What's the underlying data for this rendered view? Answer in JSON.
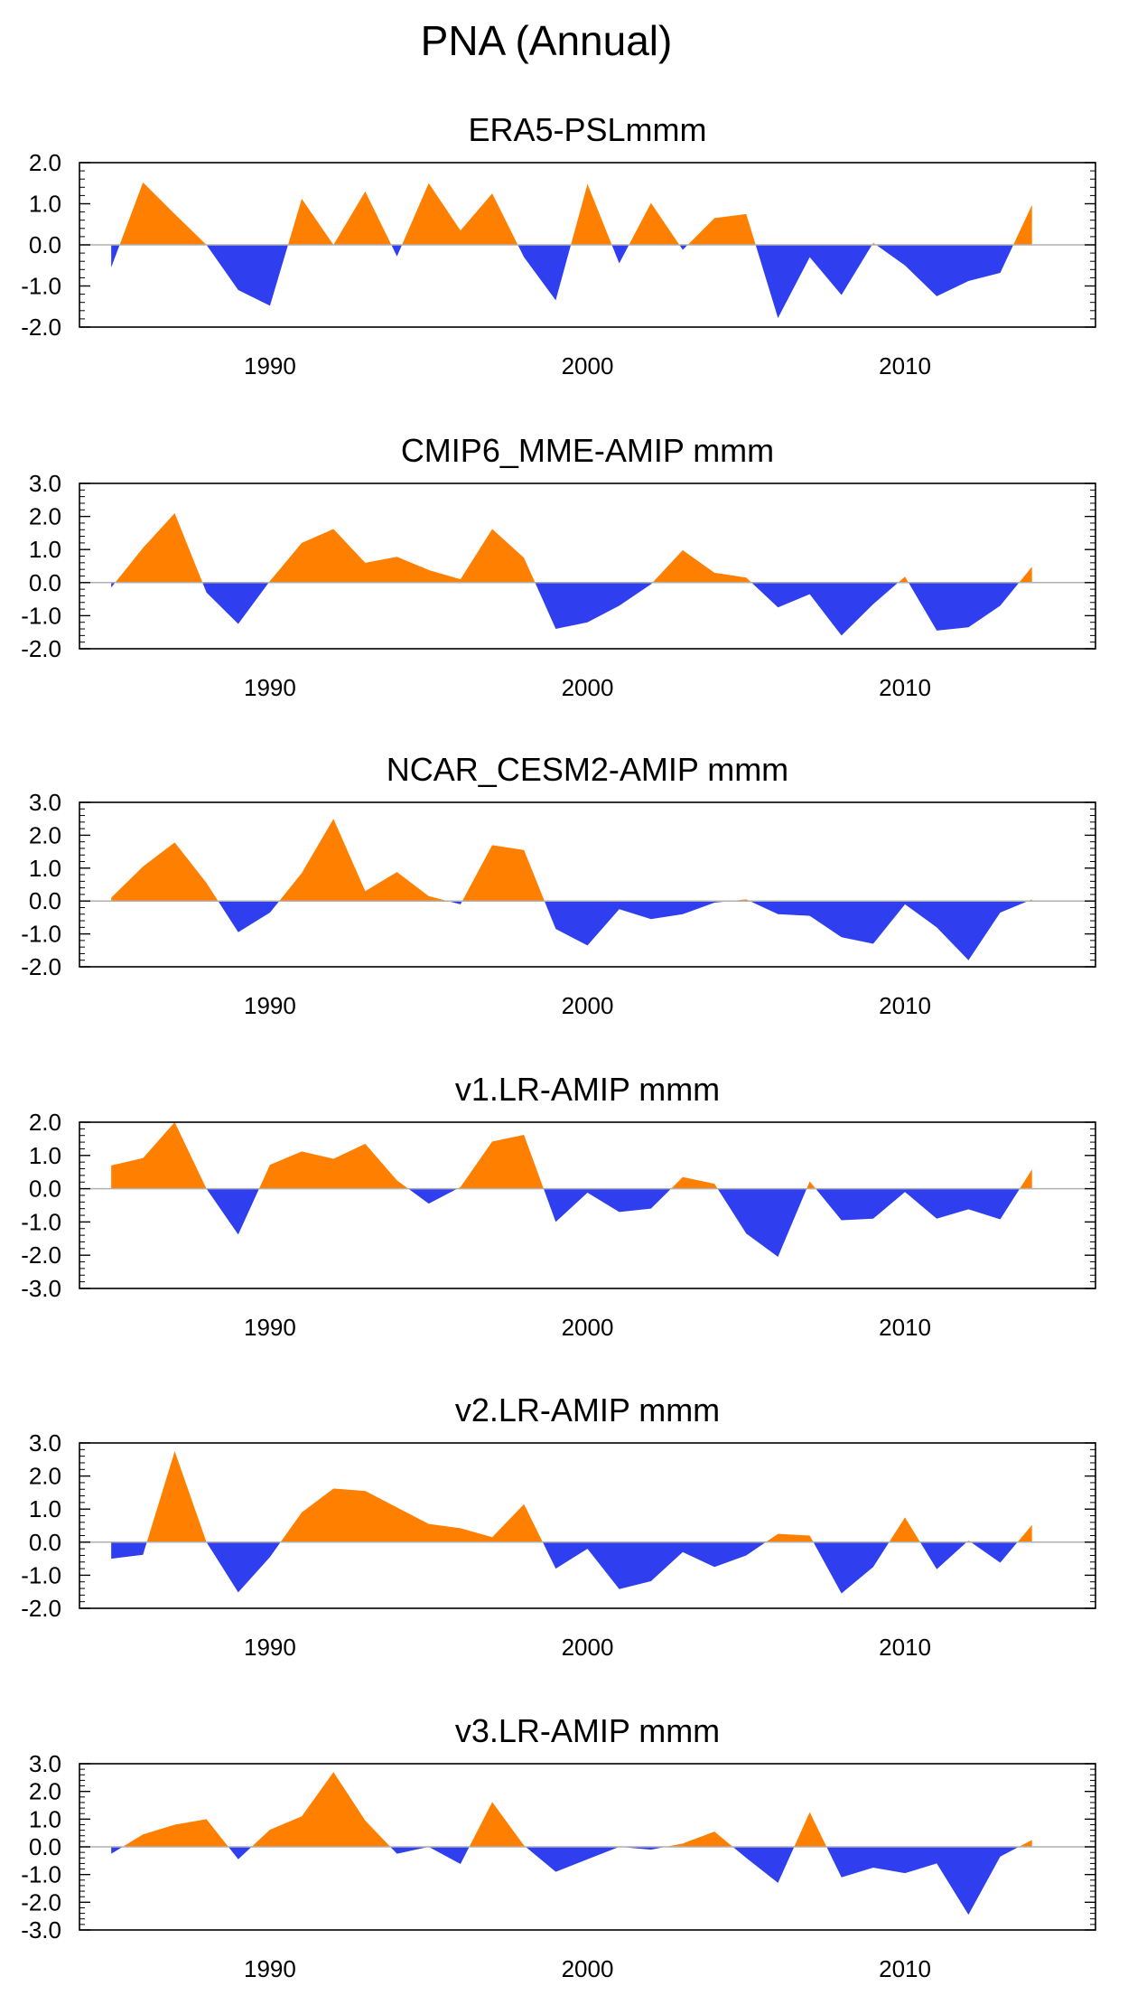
{
  "title": "PNA (Annual)",
  "colors": {
    "positive": "#ff8000",
    "negative": "#2f3ff0",
    "axis": "#000000",
    "zero_line": "#b0b0b0"
  },
  "chart_data": [
    {
      "type": "area",
      "title": "ERA5-PSLmmm",
      "xlim": [
        1984,
        2016
      ],
      "xticks": [
        1990,
        2000,
        2010
      ],
      "ylim": [
        -2.0,
        2.0
      ],
      "yticks": [
        "2.0",
        "1.0",
        "0.0",
        "-1.0",
        "-2.0"
      ],
      "x": [
        1985,
        1986,
        1987,
        1988,
        1989,
        1990,
        1991,
        1992,
        1993,
        1994,
        1995,
        1996,
        1997,
        1998,
        1999,
        2000,
        2001,
        2002,
        2003,
        2004,
        2005,
        2006,
        2007,
        2008,
        2009,
        2010,
        2011,
        2012,
        2013,
        2014
      ],
      "values": [
        -0.55,
        1.52,
        0.75,
        0.0,
        -1.1,
        -1.48,
        1.12,
        0.0,
        1.3,
        -0.28,
        1.5,
        0.35,
        1.25,
        -0.3,
        -1.35,
        1.48,
        -0.45,
        1.02,
        -0.12,
        0.65,
        0.75,
        -1.78,
        -0.3,
        -1.22,
        0.05,
        -0.5,
        -1.25,
        -0.88,
        -0.68,
        0.97
      ]
    },
    {
      "type": "area",
      "title": "CMIP6_MME-AMIP  mmm",
      "xlim": [
        1984,
        2016
      ],
      "xticks": [
        1990,
        2000,
        2010
      ],
      "ylim": [
        -2.0,
        3.0
      ],
      "yticks": [
        "3.0",
        "2.0",
        "1.0",
        "0.0",
        "-1.0",
        "-2.0"
      ],
      "x": [
        1985,
        1986,
        1987,
        1988,
        1989,
        1990,
        1991,
        1992,
        1993,
        1994,
        1995,
        1996,
        1997,
        1998,
        1999,
        2000,
        2001,
        2002,
        2003,
        2004,
        2005,
        2006,
        2007,
        2008,
        2009,
        2010,
        2011,
        2012,
        2013,
        2014
      ],
      "values": [
        -0.15,
        1.05,
        2.1,
        -0.3,
        -1.25,
        0.05,
        1.2,
        1.62,
        0.6,
        0.78,
        0.38,
        0.1,
        1.62,
        0.75,
        -1.4,
        -1.2,
        -0.7,
        -0.05,
        0.98,
        0.3,
        0.15,
        -0.75,
        -0.35,
        -1.6,
        -0.65,
        0.18,
        -1.45,
        -1.35,
        -0.7,
        0.48
      ]
    },
    {
      "type": "area",
      "title": "NCAR_CESM2-AMIP  mmm",
      "xlim": [
        1984,
        2016
      ],
      "xticks": [
        1990,
        2000,
        2010
      ],
      "ylim": [
        -2.0,
        3.0
      ],
      "yticks": [
        "3.0",
        "2.0",
        "1.0",
        "0.0",
        "-1.0",
        "-2.0"
      ],
      "x": [
        1985,
        1986,
        1987,
        1988,
        1989,
        1990,
        1991,
        1992,
        1993,
        1994,
        1995,
        1996,
        1997,
        1998,
        1999,
        2000,
        2001,
        2002,
        2003,
        2004,
        2005,
        2006,
        2007,
        2008,
        2009,
        2010,
        2011,
        2012,
        2013,
        2014
      ],
      "values": [
        0.1,
        1.05,
        1.78,
        0.55,
        -0.95,
        -0.35,
        0.85,
        2.5,
        0.3,
        0.88,
        0.15,
        -0.1,
        1.7,
        1.55,
        -0.85,
        -1.35,
        -0.25,
        -0.55,
        -0.4,
        -0.05,
        0.05,
        -0.4,
        -0.45,
        -1.1,
        -1.3,
        -0.1,
        -0.8,
        -1.8,
        -0.35,
        0.05
      ]
    },
    {
      "type": "area",
      "title": "v1.LR-AMIP  mmm",
      "xlim": [
        1984,
        2016
      ],
      "xticks": [
        1990,
        2000,
        2010
      ],
      "ylim": [
        -3.0,
        2.0
      ],
      "yticks": [
        "2.0",
        "1.0",
        "0.0",
        "-1.0",
        "-2.0",
        "-3.0"
      ],
      "x": [
        1985,
        1986,
        1987,
        1988,
        1989,
        1990,
        1991,
        1992,
        1993,
        1994,
        1995,
        1996,
        1997,
        1998,
        1999,
        2000,
        2001,
        2002,
        2003,
        2004,
        2005,
        2006,
        2007,
        2008,
        2009,
        2010,
        2011,
        2012,
        2013,
        2014
      ],
      "values": [
        0.7,
        0.92,
        2.0,
        0.0,
        -1.38,
        0.72,
        1.12,
        0.9,
        1.35,
        0.25,
        -0.45,
        0.05,
        1.42,
        1.62,
        -1.0,
        -0.12,
        -0.7,
        -0.6,
        0.35,
        0.15,
        -1.35,
        -2.05,
        0.22,
        -0.95,
        -0.9,
        -0.1,
        -0.9,
        -0.62,
        -0.92,
        0.58
      ]
    },
    {
      "type": "area",
      "title": "v2.LR-AMIP  mmm",
      "xlim": [
        1984,
        2016
      ],
      "xticks": [
        1990,
        2000,
        2010
      ],
      "ylim": [
        -2.0,
        3.0
      ],
      "yticks": [
        "3.0",
        "2.0",
        "1.0",
        "0.0",
        "-1.0",
        "-2.0"
      ],
      "x": [
        1985,
        1986,
        1987,
        1988,
        1989,
        1990,
        1991,
        1992,
        1993,
        1994,
        1995,
        1996,
        1997,
        1998,
        1999,
        2000,
        2001,
        2002,
        2003,
        2004,
        2005,
        2006,
        2007,
        2008,
        2009,
        2010,
        2011,
        2012,
        2013,
        2014
      ],
      "values": [
        -0.5,
        -0.38,
        2.75,
        0.0,
        -1.52,
        -0.45,
        0.9,
        1.62,
        1.55,
        1.05,
        0.55,
        0.42,
        0.15,
        1.15,
        -0.8,
        -0.2,
        -1.42,
        -1.18,
        -0.3,
        -0.75,
        -0.4,
        0.25,
        0.2,
        -1.55,
        -0.75,
        0.75,
        -0.82,
        0.05,
        -0.62,
        0.52
      ]
    },
    {
      "type": "area",
      "title": "v3.LR-AMIP  mmm",
      "xlim": [
        1984,
        2016
      ],
      "xticks": [
        1990,
        2000,
        2010
      ],
      "ylim": [
        -3.0,
        3.0
      ],
      "yticks": [
        "3.0",
        "2.0",
        "1.0",
        "0.0",
        "-1.0",
        "-2.0",
        "-3.0"
      ],
      "x": [
        1985,
        1986,
        1987,
        1988,
        1989,
        1990,
        1991,
        1992,
        1993,
        1994,
        1995,
        1996,
        1997,
        1998,
        1999,
        2000,
        2001,
        2002,
        2003,
        2004,
        2005,
        2006,
        2007,
        2008,
        2009,
        2010,
        2011,
        2012,
        2013,
        2014
      ],
      "values": [
        -0.25,
        0.45,
        0.8,
        1.0,
        -0.45,
        0.62,
        1.1,
        2.7,
        0.95,
        -0.25,
        0.0,
        -0.62,
        1.62,
        0.05,
        -0.9,
        -0.45,
        0.0,
        -0.1,
        0.12,
        0.55,
        -0.4,
        -1.3,
        1.25,
        -1.1,
        -0.75,
        -0.95,
        -0.6,
        -2.45,
        -0.35,
        0.25
      ]
    }
  ]
}
